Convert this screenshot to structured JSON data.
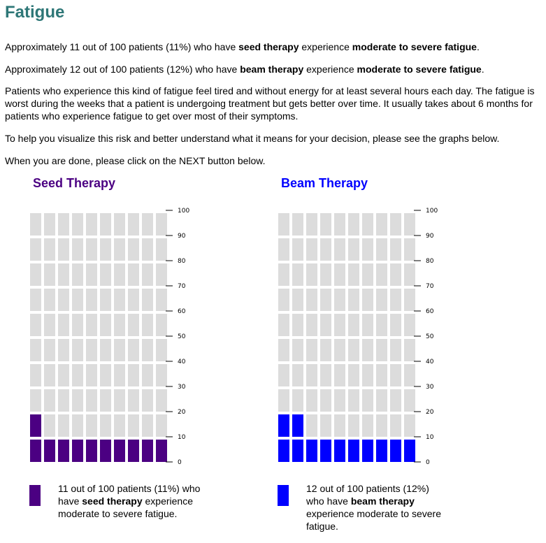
{
  "page": {
    "title": "Fatigue",
    "colors": {
      "title": "#2e7777",
      "seed": "#4b0082",
      "beam": "#0000ff",
      "empty": "#dcdcdc"
    }
  },
  "intro": {
    "p1": {
      "a": "Approximately 11 out of 100 patients (11%) who have ",
      "b": "seed therapy",
      "c": " experience ",
      "d": "moderate to severe fatigue",
      "e": "."
    },
    "p2": {
      "a": "Approximately 12 out of 100 patients (12%) who have ",
      "b": "beam therapy",
      "c": " experience ",
      "d": "moderate to severe fatigue",
      "e": "."
    },
    "p3": "Patients who experience this kind of fatigue feel tired and without energy for at least several hours each day. The fatigue is worst during the weeks that a patient is undergoing treatment but gets better over time. It usually takes about 6 months for patients who experience fatigue to get over most of their symptoms.",
    "p4": "To help you visualize this risk and better understand what it means for your decision, please see the graphs below.",
    "p5": "When you are done, please click on the NEXT button below."
  },
  "chart_data": [
    {
      "type": "bar",
      "title": "Seed Therapy",
      "total": 100,
      "value": 11,
      "grid": {
        "columns": 10,
        "rows": 10
      },
      "ylim": [
        0,
        100
      ],
      "ticks": [
        "0",
        "10",
        "20",
        "30",
        "40",
        "50",
        "60",
        "70",
        "80",
        "90",
        "100"
      ],
      "color": "#4b0082",
      "legend": {
        "a": "11 out of 100 patients (11%) who have ",
        "b": "seed therapy",
        "c": " experience moderate to severe fatigue."
      }
    },
    {
      "type": "bar",
      "title": "Beam Therapy",
      "total": 100,
      "value": 12,
      "grid": {
        "columns": 10,
        "rows": 10
      },
      "ylim": [
        0,
        100
      ],
      "ticks": [
        "0",
        "10",
        "20",
        "30",
        "40",
        "50",
        "60",
        "70",
        "80",
        "90",
        "100"
      ],
      "color": "#0000ff",
      "legend": {
        "a": "12 out of 100 patients (12%) who have ",
        "b": "beam therapy",
        "c": " experience moderate to severe fatigue."
      }
    }
  ]
}
